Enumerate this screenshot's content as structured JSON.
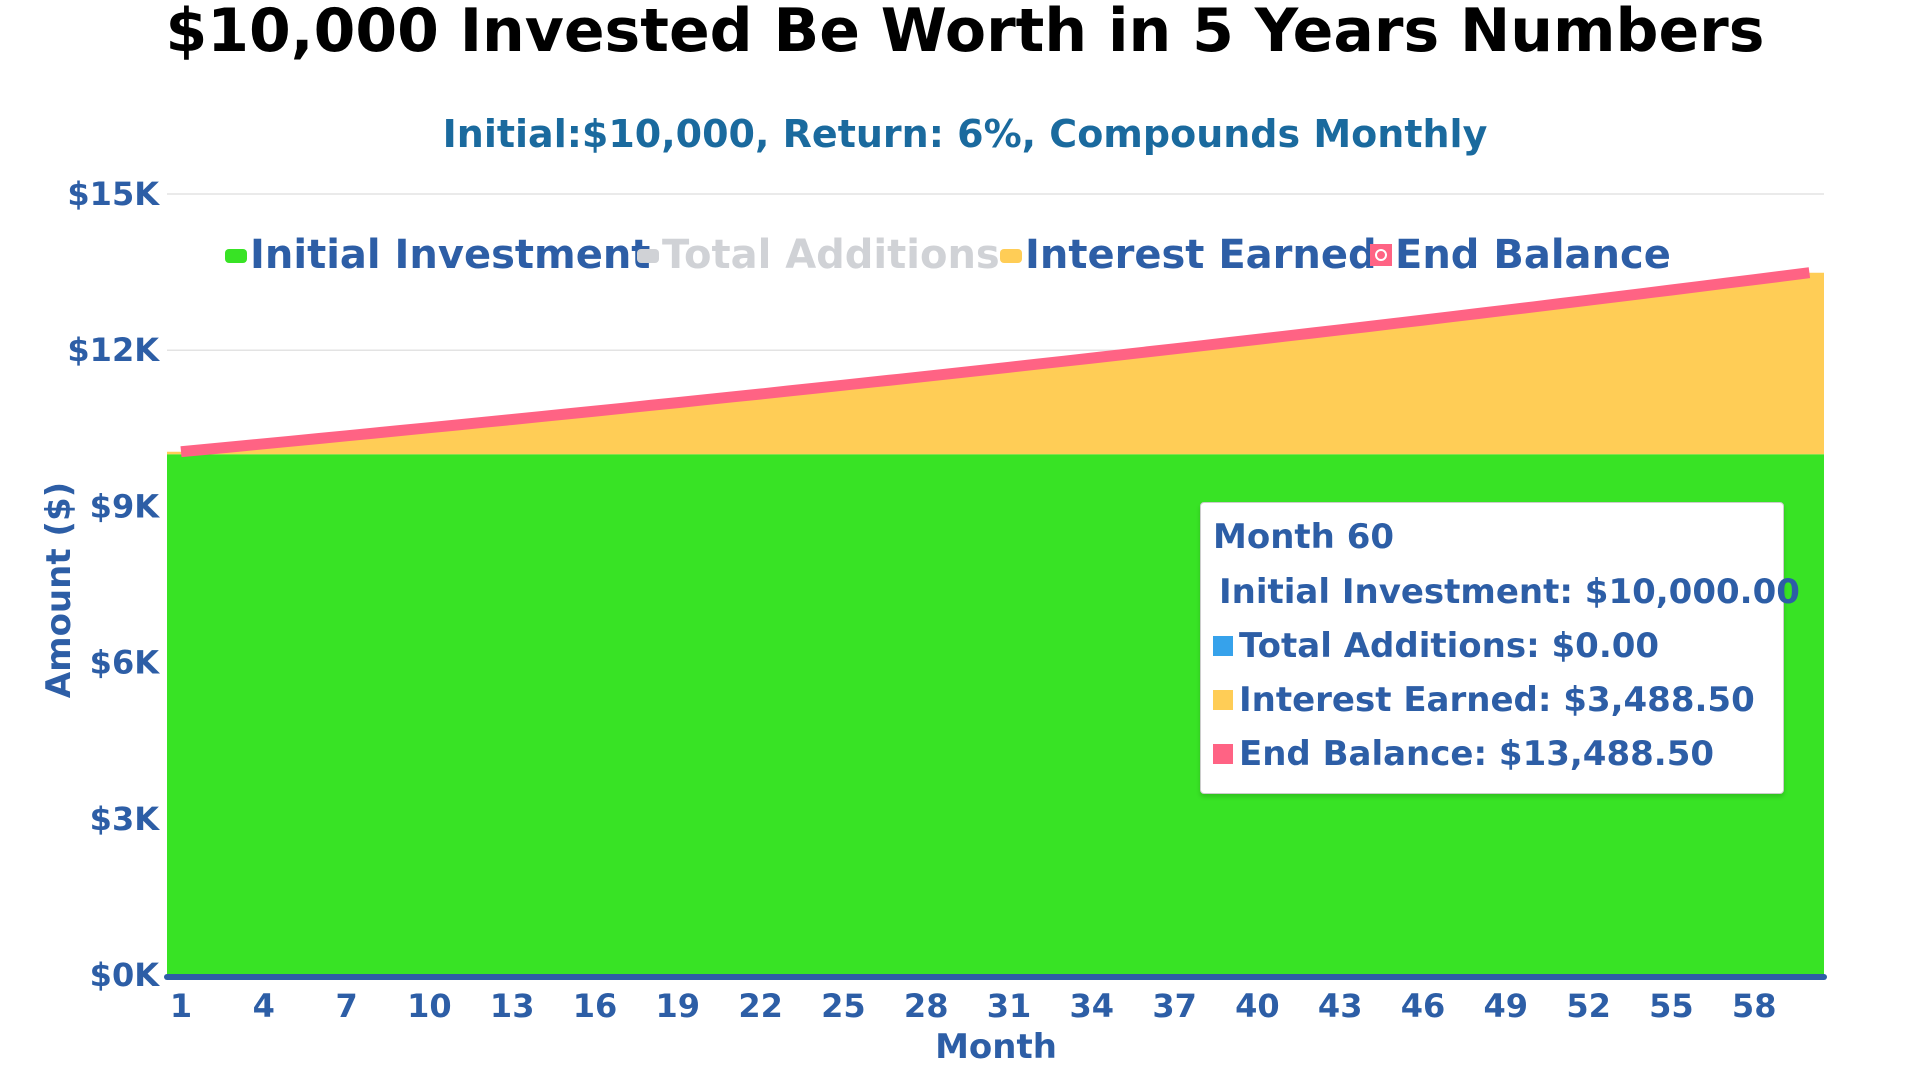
{
  "chart_data": {
    "type": "area",
    "title": "$10,000 Invested Be Worth in 5 Years Numbers",
    "subtitle": "Initial:$10,000, Return: 6%, Compounds Monthly",
    "xlabel": "Month",
    "ylabel": "Amount ($)",
    "ylim": [
      0,
      15000
    ],
    "y_ticks": [
      "$0K",
      "$3K",
      "$6K",
      "$9K",
      "$12K",
      "$15K"
    ],
    "y_tick_values": [
      0,
      3000,
      6000,
      9000,
      12000,
      15000
    ],
    "x_ticks": [
      "1",
      "4",
      "7",
      "10",
      "13",
      "16",
      "19",
      "22",
      "25",
      "28",
      "31",
      "34",
      "37",
      "40",
      "43",
      "46",
      "49",
      "52",
      "55",
      "58"
    ],
    "x": [
      1,
      2,
      3,
      4,
      5,
      6,
      7,
      8,
      9,
      10,
      11,
      12,
      13,
      14,
      15,
      16,
      17,
      18,
      19,
      20,
      21,
      22,
      23,
      24,
      25,
      26,
      27,
      28,
      29,
      30,
      31,
      32,
      33,
      34,
      35,
      36,
      37,
      38,
      39,
      40,
      41,
      42,
      43,
      44,
      45,
      46,
      47,
      48,
      49,
      50,
      51,
      52,
      53,
      54,
      55,
      56,
      57,
      58,
      59,
      60
    ],
    "grid": true,
    "legend_position": "top",
    "stacked": true,
    "series": [
      {
        "name": "Initial Investment",
        "color": "#38e325",
        "hidden": false,
        "values": [
          10000,
          10000,
          10000,
          10000,
          10000,
          10000,
          10000,
          10000,
          10000,
          10000,
          10000,
          10000,
          10000,
          10000,
          10000,
          10000,
          10000,
          10000,
          10000,
          10000,
          10000,
          10000,
          10000,
          10000,
          10000,
          10000,
          10000,
          10000,
          10000,
          10000,
          10000,
          10000,
          10000,
          10000,
          10000,
          10000,
          10000,
          10000,
          10000,
          10000,
          10000,
          10000,
          10000,
          10000,
          10000,
          10000,
          10000,
          10000,
          10000,
          10000,
          10000,
          10000,
          10000,
          10000,
          10000,
          10000,
          10000,
          10000,
          10000,
          10000
        ]
      },
      {
        "name": "Total Additions",
        "color": "#36a2eb",
        "hidden": true,
        "values": [
          0,
          0,
          0,
          0,
          0,
          0,
          0,
          0,
          0,
          0,
          0,
          0,
          0,
          0,
          0,
          0,
          0,
          0,
          0,
          0,
          0,
          0,
          0,
          0,
          0,
          0,
          0,
          0,
          0,
          0,
          0,
          0,
          0,
          0,
          0,
          0,
          0,
          0,
          0,
          0,
          0,
          0,
          0,
          0,
          0,
          0,
          0,
          0,
          0,
          0,
          0,
          0,
          0,
          0,
          0,
          0,
          0,
          0,
          0,
          0
        ]
      },
      {
        "name": "Interest Earned",
        "color": "#ffcd56",
        "hidden": false,
        "values": [
          50.0,
          100.25,
          150.75,
          201.51,
          252.51,
          303.78,
          355.29,
          407.07,
          459.11,
          511.4,
          563.96,
          616.78,
          669.86,
          723.21,
          776.83,
          830.71,
          884.87,
          939.29,
          993.99,
          1048.96,
          1104.2,
          1159.72,
          1215.52,
          1271.6,
          1327.96,
          1384.6,
          1441.52,
          1498.73,
          1556.22,
          1614.0,
          1672.07,
          1730.43,
          1789.08,
          1848.03,
          1907.27,
          1966.81,
          2026.64,
          2086.77,
          2147.21,
          2207.94,
          2268.98,
          2330.33,
          2391.98,
          2453.94,
          2516.21,
          2578.79,
          2641.68,
          2704.89,
          2768.41,
          2832.26,
          2896.42,
          2960.9,
          3025.7,
          3090.83,
          3156.28,
          3222.06,
          3288.17,
          3354.61,
          3421.38,
          3488.5
        ]
      },
      {
        "name": "End Balance",
        "color": "#ff6384",
        "type": "line",
        "hidden": false,
        "values": [
          10050.0,
          10100.25,
          10150.75,
          10201.51,
          10252.51,
          10303.78,
          10355.29,
          10407.07,
          10459.11,
          10511.4,
          10563.96,
          10616.78,
          10669.86,
          10723.21,
          10776.83,
          10830.71,
          10884.87,
          10939.29,
          10993.99,
          11048.96,
          11104.2,
          11159.72,
          11215.52,
          11271.6,
          11327.96,
          11384.6,
          11441.52,
          11498.73,
          11556.22,
          11614.0,
          11672.07,
          11730.43,
          11789.08,
          11848.03,
          11907.27,
          11966.81,
          12026.64,
          12086.77,
          12147.21,
          12207.94,
          12268.98,
          12330.33,
          12391.98,
          12453.94,
          12516.21,
          12578.79,
          12641.68,
          12704.89,
          12768.41,
          12832.26,
          12896.42,
          12960.9,
          13025.7,
          13090.83,
          13156.28,
          13222.06,
          13288.17,
          13354.61,
          13421.38,
          13488.5
        ]
      }
    ],
    "legend_hidden_color": "#d0d2d6",
    "text_color": "#2d5ea6",
    "tooltip": {
      "title": "Month 60",
      "rows": [
        {
          "label": "Initial Investment: $10,000.00",
          "color": "#38e325"
        },
        {
          "label": "Total Additions: $0.00",
          "color": "#36a2eb"
        },
        {
          "label": "Interest Earned: $3,488.50",
          "color": "#ffcd56"
        },
        {
          "label": "End Balance: $13,488.50",
          "color": "#ff6384"
        }
      ]
    }
  }
}
